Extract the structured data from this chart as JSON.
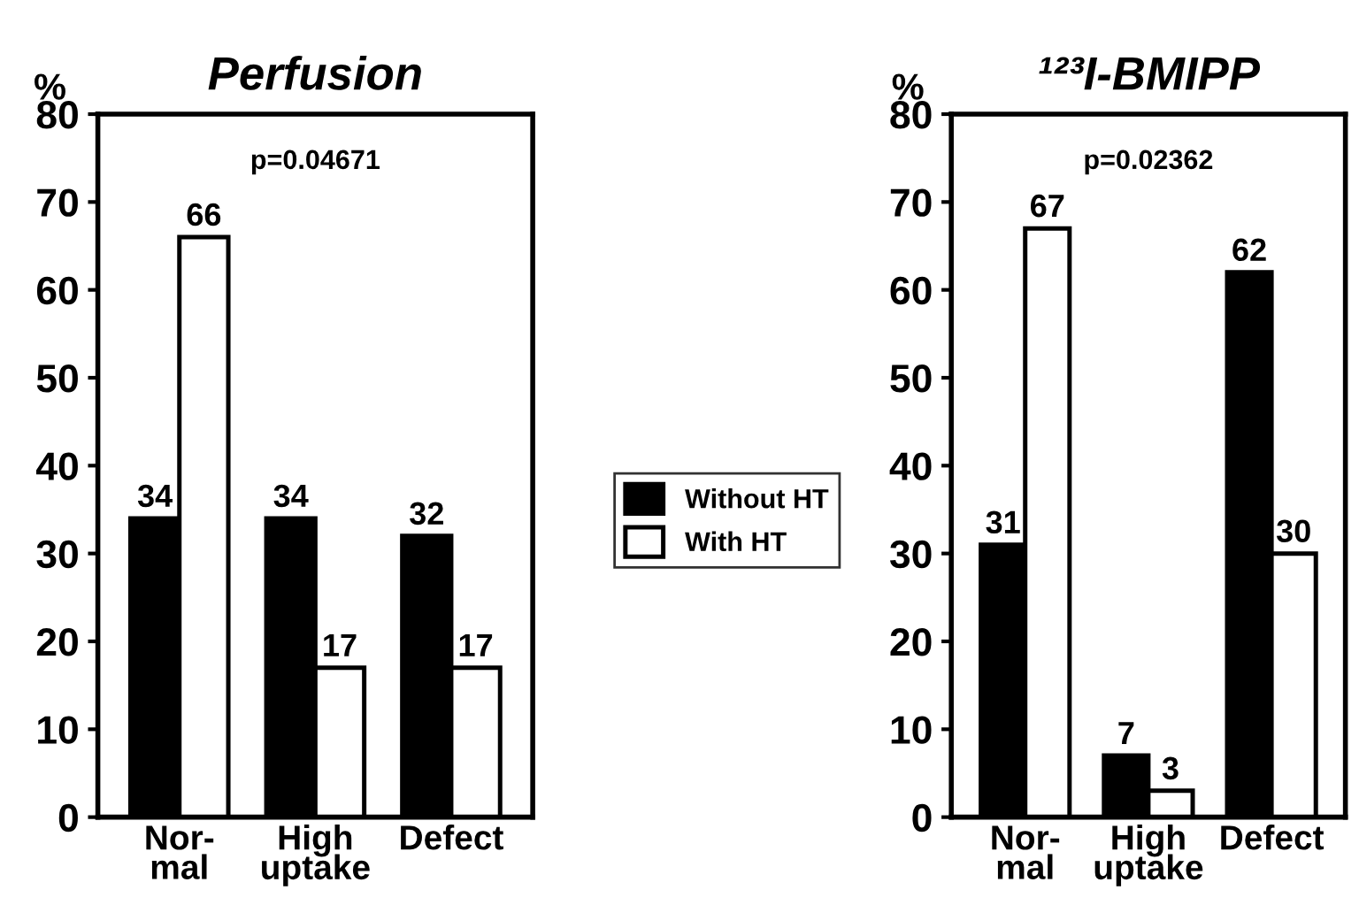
{
  "chart_data": [
    {
      "type": "bar",
      "title": "Perfusion",
      "ylabel": "%",
      "categories": [
        "Nor-\nmal",
        "High\nuptake",
        "Defect"
      ],
      "series": [
        {
          "name": "Without HT",
          "color": "#000000",
          "values": [
            34,
            34,
            32
          ]
        },
        {
          "name": "With HT",
          "color": "#ffffff",
          "values": [
            66,
            17,
            17
          ]
        }
      ],
      "ylim": [
        0,
        80
      ],
      "yticks": [
        0,
        10,
        20,
        30,
        40,
        50,
        60,
        70,
        80
      ],
      "data_labels": true,
      "legend": "right",
      "annotations": [
        "p=0.04671"
      ]
    },
    {
      "type": "bar",
      "title": "¹²³I-BMIPP",
      "ylabel": "%",
      "categories": [
        "Nor-\nmal",
        "High\nuptake",
        "Defect"
      ],
      "series": [
        {
          "color": "#000000",
          "values": [
            31,
            7,
            62
          ]
        },
        {
          "color": "#ffffff",
          "values": [
            67,
            3,
            30
          ]
        }
      ],
      "ylim": [
        0,
        80
      ],
      "yticks": [
        0,
        10,
        20,
        30,
        40,
        50,
        60,
        70,
        80
      ],
      "data_labels": true,
      "annotations": [
        "p=0.02362"
      ]
    }
  ]
}
